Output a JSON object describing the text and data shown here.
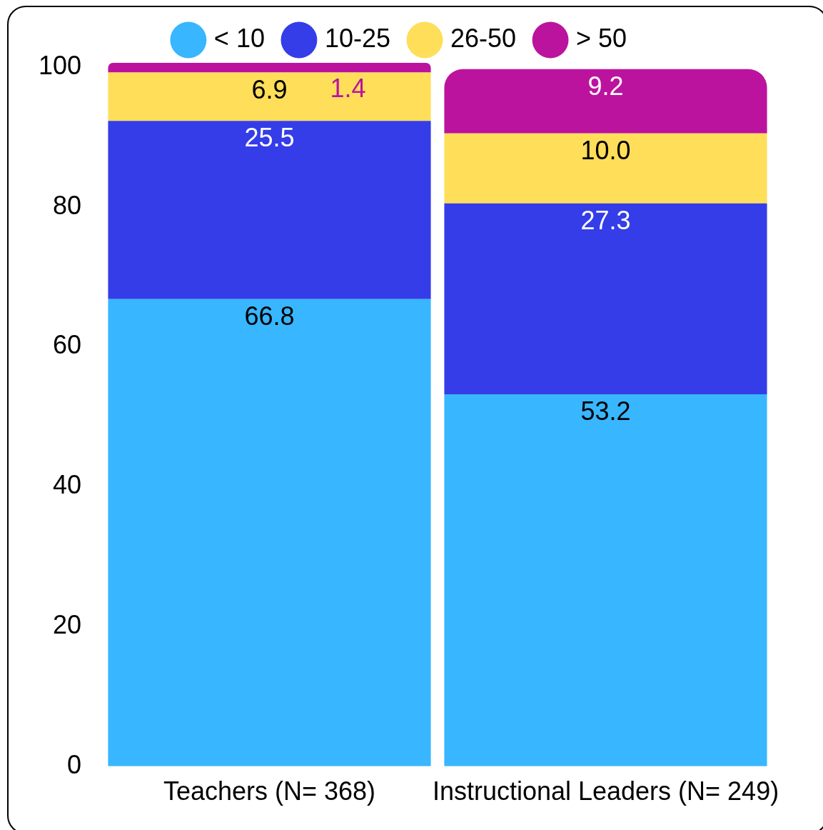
{
  "chart_data": {
    "type": "bar",
    "stacked": true,
    "categories": [
      "Teachers (N= 368)",
      "Instructional Leaders (N= 249)"
    ],
    "series": [
      {
        "name": "< 10",
        "color": "#38b6ff",
        "values": [
          66.8,
          53.2
        ],
        "value_labels": [
          "66.8",
          "53.2"
        ]
      },
      {
        "name": "10-25",
        "color": "#343de8",
        "values": [
          25.5,
          27.3
        ],
        "value_labels": [
          "25.5",
          "27.3"
        ]
      },
      {
        "name": "26-50",
        "color": "#ffde59",
        "values": [
          6.9,
          10.0
        ],
        "value_labels": [
          "6.9",
          "10.0"
        ]
      },
      {
        "name": "> 50",
        "color": "#bc139f",
        "values": [
          1.4,
          9.2
        ],
        "value_labels": [
          "1.4",
          "9.2"
        ]
      }
    ],
    "ylim": [
      0,
      101
    ],
    "yticks": [
      0,
      20,
      40,
      60,
      80,
      100
    ],
    "grid": false,
    "legend": "top"
  }
}
